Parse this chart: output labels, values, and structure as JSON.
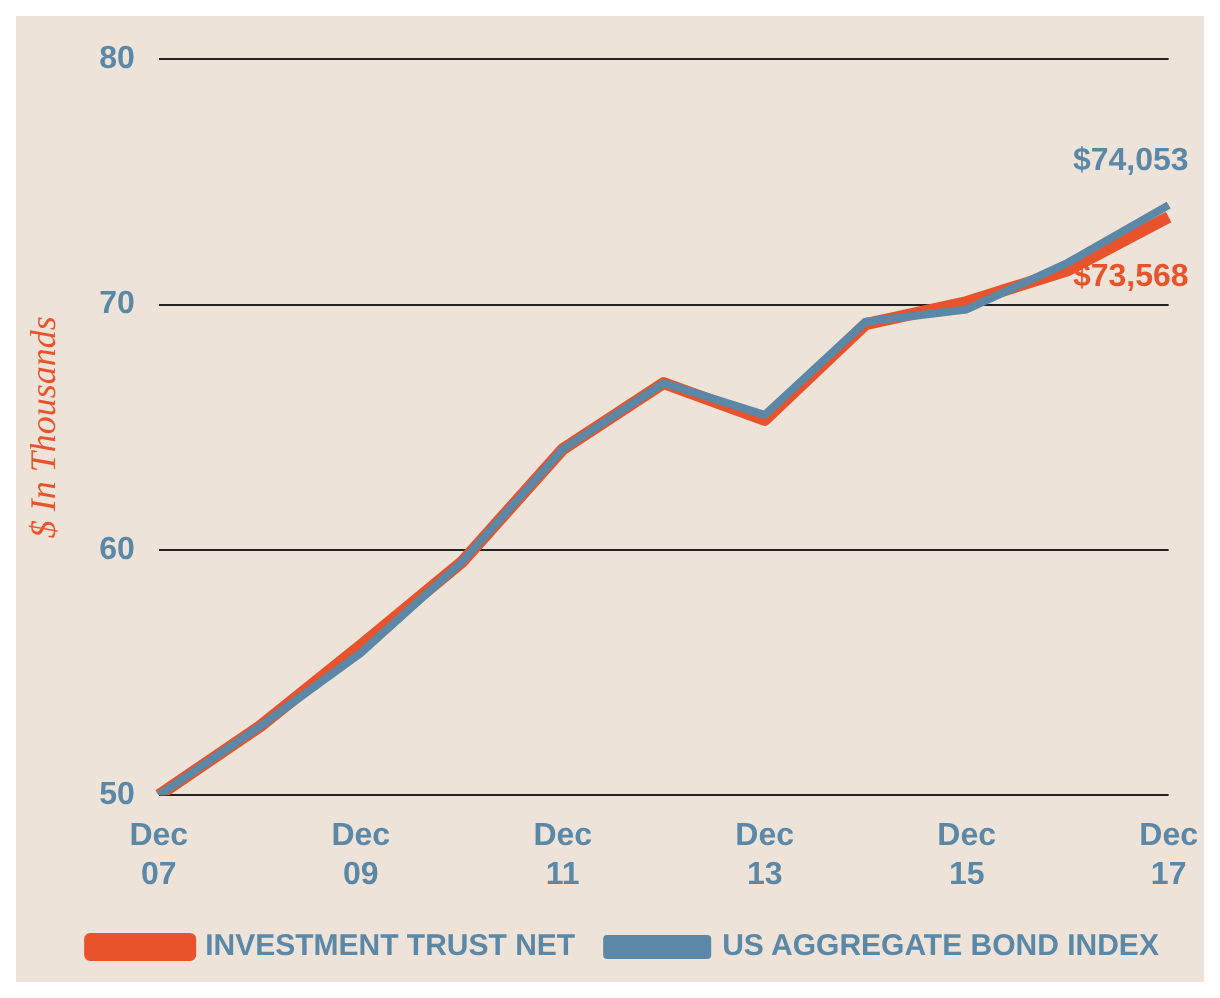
{
  "chart_data": {
    "type": "line",
    "ylabel": "$ In Thousands",
    "categories": [
      "Dec 07",
      null,
      "Dec 09",
      null,
      "Dec 11",
      null,
      "Dec 13",
      null,
      "Dec 15",
      null,
      "Dec 17"
    ],
    "series": [
      {
        "name": "INVESTMENT TRUST NET",
        "color": "#e8532b",
        "values": [
          50,
          52.8,
          56.1,
          59.5,
          64.1,
          66.8,
          65.3,
          69.2,
          70.1,
          71.4,
          73.568
        ]
      },
      {
        "name": "US AGGREGATE BOND INDEX",
        "color": "#5b88a6",
        "values": [
          50,
          52.8,
          55.8,
          59.5,
          64.1,
          66.8,
          65.5,
          69.3,
          69.8,
          71.7,
          74.053
        ]
      }
    ],
    "ylim": [
      50,
      80
    ],
    "yticks": [
      50,
      60,
      70,
      80
    ],
    "grid": "y",
    "legend": "bottom",
    "marker": "none",
    "annotations": [
      {
        "text": "$74,053",
        "x": "Dec 17",
        "y": 74.053
      },
      {
        "text": "$73,568",
        "x": "Dec 17",
        "y": 73.568
      }
    ]
  }
}
